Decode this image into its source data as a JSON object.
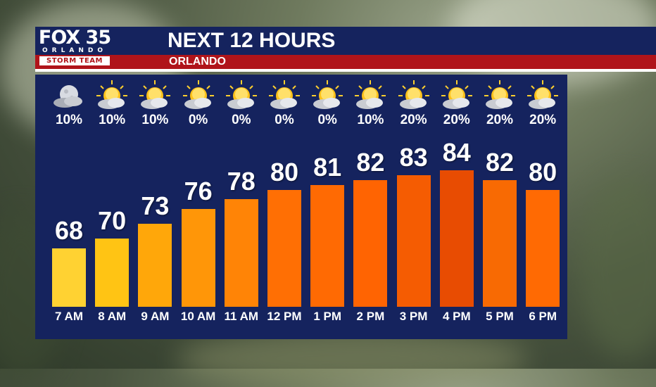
{
  "header": {
    "title": "NEXT 12 HOURS",
    "location": "ORLANDO",
    "logo_line1": "FOX 35",
    "logo_line2": "ORLANDO",
    "logo_line3": "STORM TEAM"
  },
  "colors": {
    "panel": "#15235e",
    "accent_red": "#b0141a"
  },
  "chart_data": {
    "type": "bar",
    "title": "NEXT 12 HOURS",
    "categories": [
      "7 AM",
      "8 AM",
      "9 AM",
      "10 AM",
      "11 AM",
      "12 PM",
      "1 PM",
      "2 PM",
      "3 PM",
      "4 PM",
      "5 PM",
      "6 PM"
    ],
    "series": [
      {
        "name": "temperature",
        "values": [
          68,
          70,
          73,
          76,
          78,
          80,
          81,
          82,
          83,
          84,
          82,
          80
        ]
      },
      {
        "name": "rain_chance",
        "values": [
          "10%",
          "10%",
          "10%",
          "0%",
          "0%",
          "0%",
          "0%",
          "10%",
          "20%",
          "20%",
          "20%",
          "20%"
        ]
      }
    ],
    "icons": [
      "moon-cloud-icon",
      "sun-cloud-icon",
      "sun-cloud-icon",
      "sun-cloud-icon",
      "sun-cloud-icon",
      "sun-cloud-icon",
      "sun-cloud-icon",
      "sun-cloud-icon",
      "sun-cloud-icon",
      "sun-cloud-icon",
      "sun-cloud-icon",
      "sun-cloud-icon"
    ],
    "bar_colors": [
      "#ffd232",
      "#ffc414",
      "#ffa70a",
      "#ff9608",
      "#ff8406",
      "#ff6f04",
      "#ff6a03",
      "#ff6402",
      "#f55c02",
      "#e84c02",
      "#f86a03",
      "#ff6a03"
    ],
    "ylim": [
      56,
      88
    ]
  }
}
